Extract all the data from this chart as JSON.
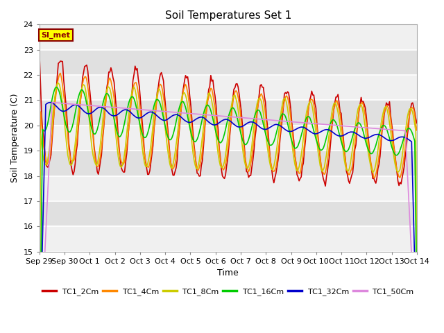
{
  "title": "Soil Temperatures Set 1",
  "xlabel": "Time",
  "ylabel": "Soil Temperature (C)",
  "ylim": [
    15.0,
    24.0
  ],
  "yticks": [
    15.0,
    16.0,
    17.0,
    18.0,
    19.0,
    20.0,
    21.0,
    22.0,
    23.0,
    24.0
  ],
  "background_color": "#ffffff",
  "plot_bg_light": "#f0f0f0",
  "plot_bg_dark": "#e0e0e0",
  "grid_color": "#ffffff",
  "annotation_text": "SI_met",
  "annotation_bg": "#ffff00",
  "annotation_border": "#8B0000",
  "series": [
    {
      "label": "TC1_2Cm",
      "color": "#cc0000",
      "lw": 1.2
    },
    {
      "label": "TC1_4Cm",
      "color": "#ff8800",
      "lw": 1.2
    },
    {
      "label": "TC1_8Cm",
      "color": "#cccc00",
      "lw": 1.2
    },
    {
      "label": "TC1_16Cm",
      "color": "#00cc00",
      "lw": 1.2
    },
    {
      "label": "TC1_32Cm",
      "color": "#0000cc",
      "lw": 1.2
    },
    {
      "label": "TC1_50Cm",
      "color": "#dd88dd",
      "lw": 1.2
    }
  ],
  "xtick_labels": [
    "Sep 29",
    "Sep 30",
    "Oct 1",
    "Oct 2",
    "Oct 3",
    "Oct 4",
    "Oct 5",
    "Oct 6",
    "Oct 7",
    "Oct 8",
    "Oct 9",
    "Oct 10",
    "Oct 11",
    "Oct 12",
    "Oct 13",
    "Oct 14"
  ],
  "xtick_positions": [
    0,
    1,
    2,
    3,
    4,
    5,
    6,
    7,
    8,
    9,
    10,
    11,
    12,
    13,
    14,
    15
  ]
}
